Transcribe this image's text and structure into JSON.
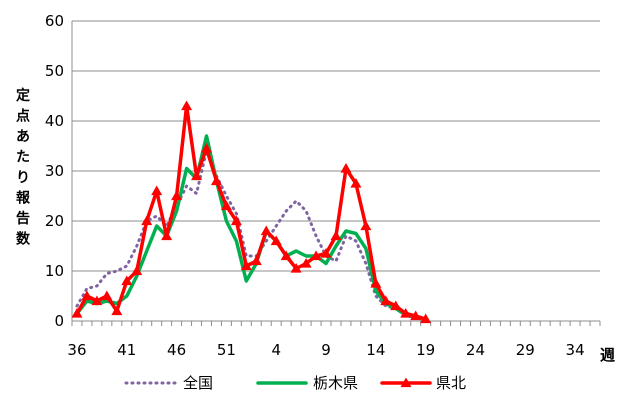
{
  "chart_data": {
    "type": "line",
    "title": "",
    "xlabel": "週",
    "ylabel": "定点あたり報告数",
    "ylim": [
      0,
      60
    ],
    "yticks": [
      0,
      10,
      20,
      30,
      40,
      50,
      60
    ],
    "x_tick_labels": [
      "36",
      "41",
      "46",
      "51",
      "4",
      "9",
      "14",
      "19",
      "24",
      "29",
      "34"
    ],
    "x_slot_count": 53,
    "grid": "horizontal",
    "legend": "bottom",
    "series": [
      {
        "name": "全国",
        "style": "dotted",
        "color": "#8064a2",
        "x": [
          36,
          37,
          38,
          39,
          40,
          41,
          42,
          43,
          44,
          45,
          46,
          47,
          48,
          49,
          50,
          51,
          52,
          1,
          2,
          3,
          4,
          5,
          6,
          7,
          8,
          9,
          10,
          11,
          12,
          13,
          14,
          15,
          16,
          17,
          18,
          19
        ],
        "values": [
          3,
          6.5,
          7,
          9.5,
          10,
          11,
          15,
          20,
          21,
          19,
          23,
          27,
          25.5,
          34,
          29,
          25,
          21.5,
          13,
          13,
          16,
          19,
          22,
          24,
          22,
          17,
          13,
          12,
          17,
          16,
          11.5,
          5,
          3,
          2.5,
          1.5,
          0.8,
          0.4
        ]
      },
      {
        "name": "栃木県",
        "style": "solid",
        "color": "#00b050",
        "x": [
          36,
          37,
          38,
          39,
          40,
          41,
          42,
          43,
          44,
          45,
          46,
          47,
          48,
          49,
          50,
          51,
          52,
          1,
          2,
          3,
          4,
          5,
          6,
          7,
          8,
          9,
          10,
          11,
          12,
          13,
          14,
          15,
          16,
          17,
          18,
          19
        ],
        "values": [
          1.5,
          4,
          3.5,
          4,
          3.5,
          5,
          9,
          14,
          19,
          17,
          22,
          30.5,
          28.5,
          37,
          28,
          20,
          16,
          8,
          11.5,
          18,
          16,
          13,
          14,
          13,
          13,
          11.5,
          15,
          18,
          17.5,
          14.5,
          6,
          3.5,
          2.5,
          1.2,
          0.7,
          0.3
        ]
      },
      {
        "name": "県北",
        "style": "solid-triangle",
        "color": "#ff0000",
        "x": [
          36,
          37,
          38,
          39,
          40,
          41,
          42,
          43,
          44,
          45,
          46,
          47,
          48,
          49,
          50,
          51,
          52,
          1,
          2,
          3,
          4,
          5,
          6,
          7,
          8,
          9,
          10,
          11,
          12,
          13,
          14,
          15,
          16,
          17,
          18,
          19
        ],
        "values": [
          1.5,
          5,
          4,
          5,
          2,
          8,
          10,
          20,
          26,
          17,
          25,
          43,
          29,
          34.5,
          28,
          23,
          20,
          11,
          12,
          18,
          16,
          13,
          10.5,
          11.5,
          13,
          13.5,
          17,
          30.5,
          27.5,
          19,
          7.5,
          4,
          3,
          1.5,
          1,
          0.4
        ]
      }
    ]
  }
}
